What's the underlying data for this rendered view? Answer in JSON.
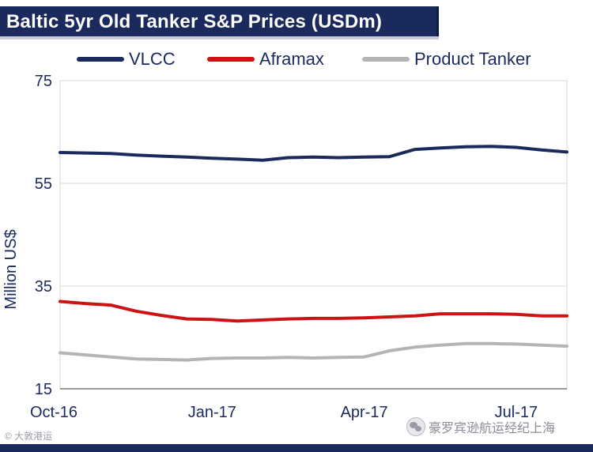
{
  "chart_data": {
    "type": "line",
    "title": "Baltic 5yr Old Tanker S&P Prices (USDm)",
    "xlabel": "",
    "ylabel": "Million US$",
    "ylim": [
      15,
      75
    ],
    "yticks": [
      15,
      35,
      55,
      75
    ],
    "ytick_labels": [
      "15",
      "35",
      "55",
      "75"
    ],
    "xlim": [
      0,
      40
    ],
    "xticks": [
      0,
      12,
      24,
      36
    ],
    "xtick_labels": [
      "Oct-16",
      "Jan-17",
      "Apr-17",
      "Jul-17"
    ],
    "grid": true,
    "legend_position": "top",
    "x": [
      0,
      2,
      4,
      6,
      8,
      10,
      12,
      14,
      16,
      18,
      20,
      22,
      24,
      26,
      28,
      30,
      32,
      34,
      36,
      38,
      40
    ],
    "series": [
      {
        "name": "VLCC",
        "color": "#1b2a5c",
        "values": [
          61.0,
          60.9,
          60.8,
          60.5,
          60.3,
          60.1,
          59.9,
          59.7,
          59.5,
          60.0,
          60.1,
          60.0,
          60.1,
          60.2,
          61.6,
          61.9,
          62.1,
          62.2,
          62.0,
          61.5,
          61.1
        ]
      },
      {
        "name": "Aframax",
        "color": "#cc1414",
        "values": [
          32.0,
          31.6,
          31.3,
          30.1,
          29.3,
          28.6,
          28.5,
          28.2,
          28.4,
          28.6,
          28.7,
          28.7,
          28.8,
          29.0,
          29.2,
          29.6,
          29.6,
          29.6,
          29.5,
          29.2,
          29.2
        ]
      },
      {
        "name": "Product Tanker",
        "color": "#b4b4b4",
        "values": [
          22.0,
          21.6,
          21.2,
          20.8,
          20.7,
          20.6,
          20.9,
          21.0,
          21.0,
          21.1,
          21.0,
          21.1,
          21.2,
          22.4,
          23.1,
          23.5,
          23.8,
          23.8,
          23.7,
          23.5,
          23.3
        ]
      }
    ]
  },
  "watermarks": {
    "left": "© 大敦港运",
    "right": "豪罗宾逊航运经纪上海"
  }
}
